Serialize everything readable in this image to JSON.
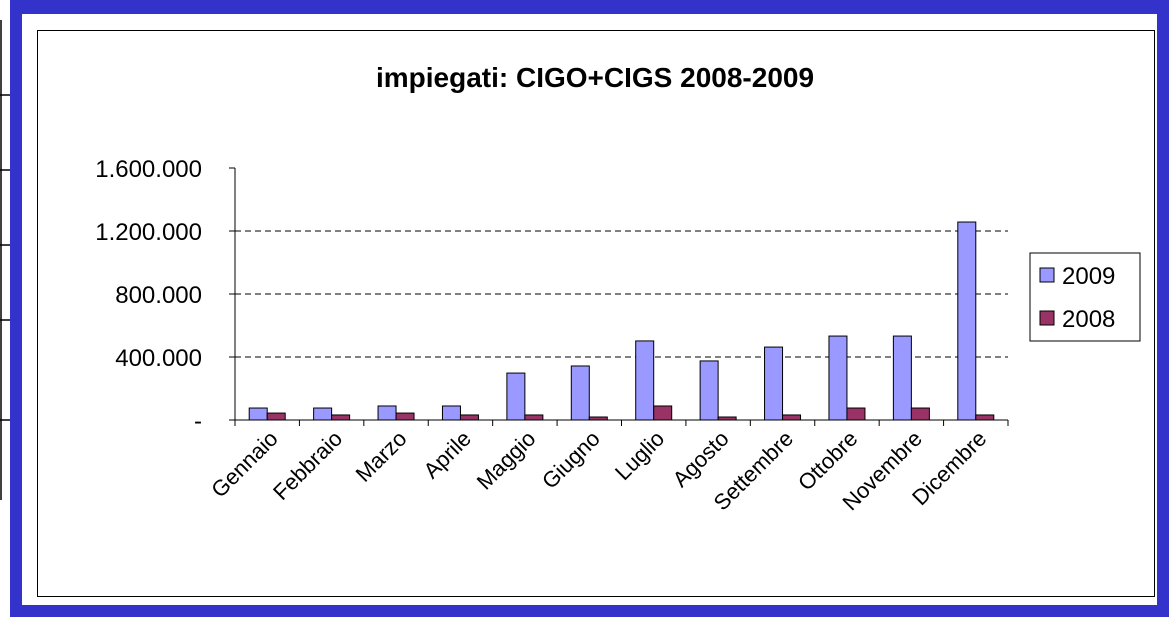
{
  "chart_data": {
    "type": "bar",
    "title": "impiegati: CIGO+CIGS 2008-2009",
    "categories": [
      "Gennaio",
      "Febbraio",
      "Marzo",
      "Aprile",
      "Maggio",
      "Giugno",
      "Luglio",
      "Agosto",
      "Settembre",
      "Ottobre",
      "Novembre",
      "Dicembre"
    ],
    "series": [
      {
        "name": "2009",
        "color": "#9999ff",
        "values": [
          76000,
          76000,
          89000,
          89000,
          298000,
          343000,
          502000,
          375000,
          463000,
          533000,
          533000,
          1257000
        ]
      },
      {
        "name": "2008",
        "color": "#993366",
        "values": [
          44000,
          32000,
          44000,
          32000,
          32000,
          19000,
          89000,
          19000,
          32000,
          76000,
          76000,
          32000
        ]
      }
    ],
    "ylim": [
      0,
      1600000
    ],
    "yticks": [
      {
        "value": 0,
        "label": "-"
      },
      {
        "value": 400000,
        "label": "400.000"
      },
      {
        "value": 800000,
        "label": "800.000"
      },
      {
        "value": 1200000,
        "label": "1.200.000"
      },
      {
        "value": 1600000,
        "label": "1.600.000"
      }
    ],
    "grid": true,
    "legend": "right"
  }
}
